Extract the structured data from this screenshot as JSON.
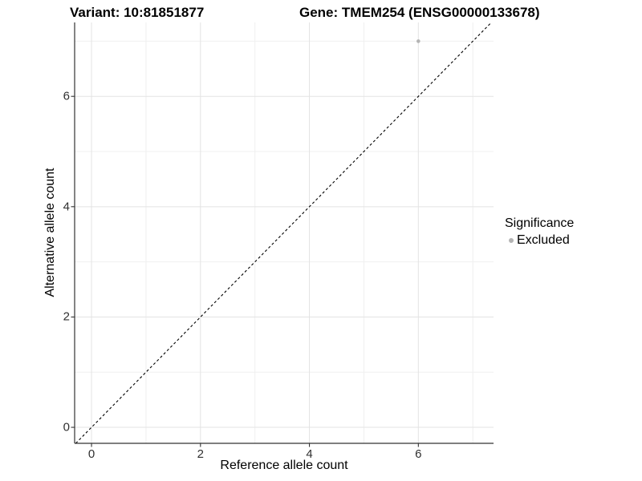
{
  "titles": {
    "left": "Variant: 10:81851877",
    "right": "Gene: TMEM254 (ENSG00000133678)"
  },
  "axes": {
    "x_label": "Reference allele count",
    "y_label": "Alternative allele count"
  },
  "legend": {
    "title": "Significance",
    "items": [
      {
        "label": "Excluded",
        "color": "#b4b4b4"
      }
    ]
  },
  "colors": {
    "grid_major": "#e3e3e3",
    "grid_minor": "#f0f0f0",
    "axis_line": "#333333",
    "tick_mark": "#333333",
    "identity_line": "#000000",
    "point": "#b4b4b4"
  },
  "chart_data": {
    "type": "scatter",
    "title": "Variant: 10:81851877   Gene: TMEM254 (ENSG00000133678)",
    "xlabel": "Reference allele count",
    "ylabel": "Alternative allele count",
    "xlim": [
      -0.31,
      7.38
    ],
    "ylim": [
      -0.29,
      7.34
    ],
    "x_ticks": [
      0,
      2,
      4,
      6
    ],
    "y_ticks": [
      0,
      2,
      4,
      6
    ],
    "x_minor_ticks": [
      1,
      3,
      5,
      7
    ],
    "y_minor_ticks": [
      1,
      3,
      5,
      7
    ],
    "grid": true,
    "legend_position": "right",
    "series": [
      {
        "name": "Excluded",
        "color": "#b4b4b4",
        "points": [
          {
            "x": 6,
            "y": 7
          }
        ]
      }
    ],
    "reference_line": {
      "type": "identity",
      "equation": "y = x",
      "style": "dashed",
      "color": "#000000"
    }
  }
}
